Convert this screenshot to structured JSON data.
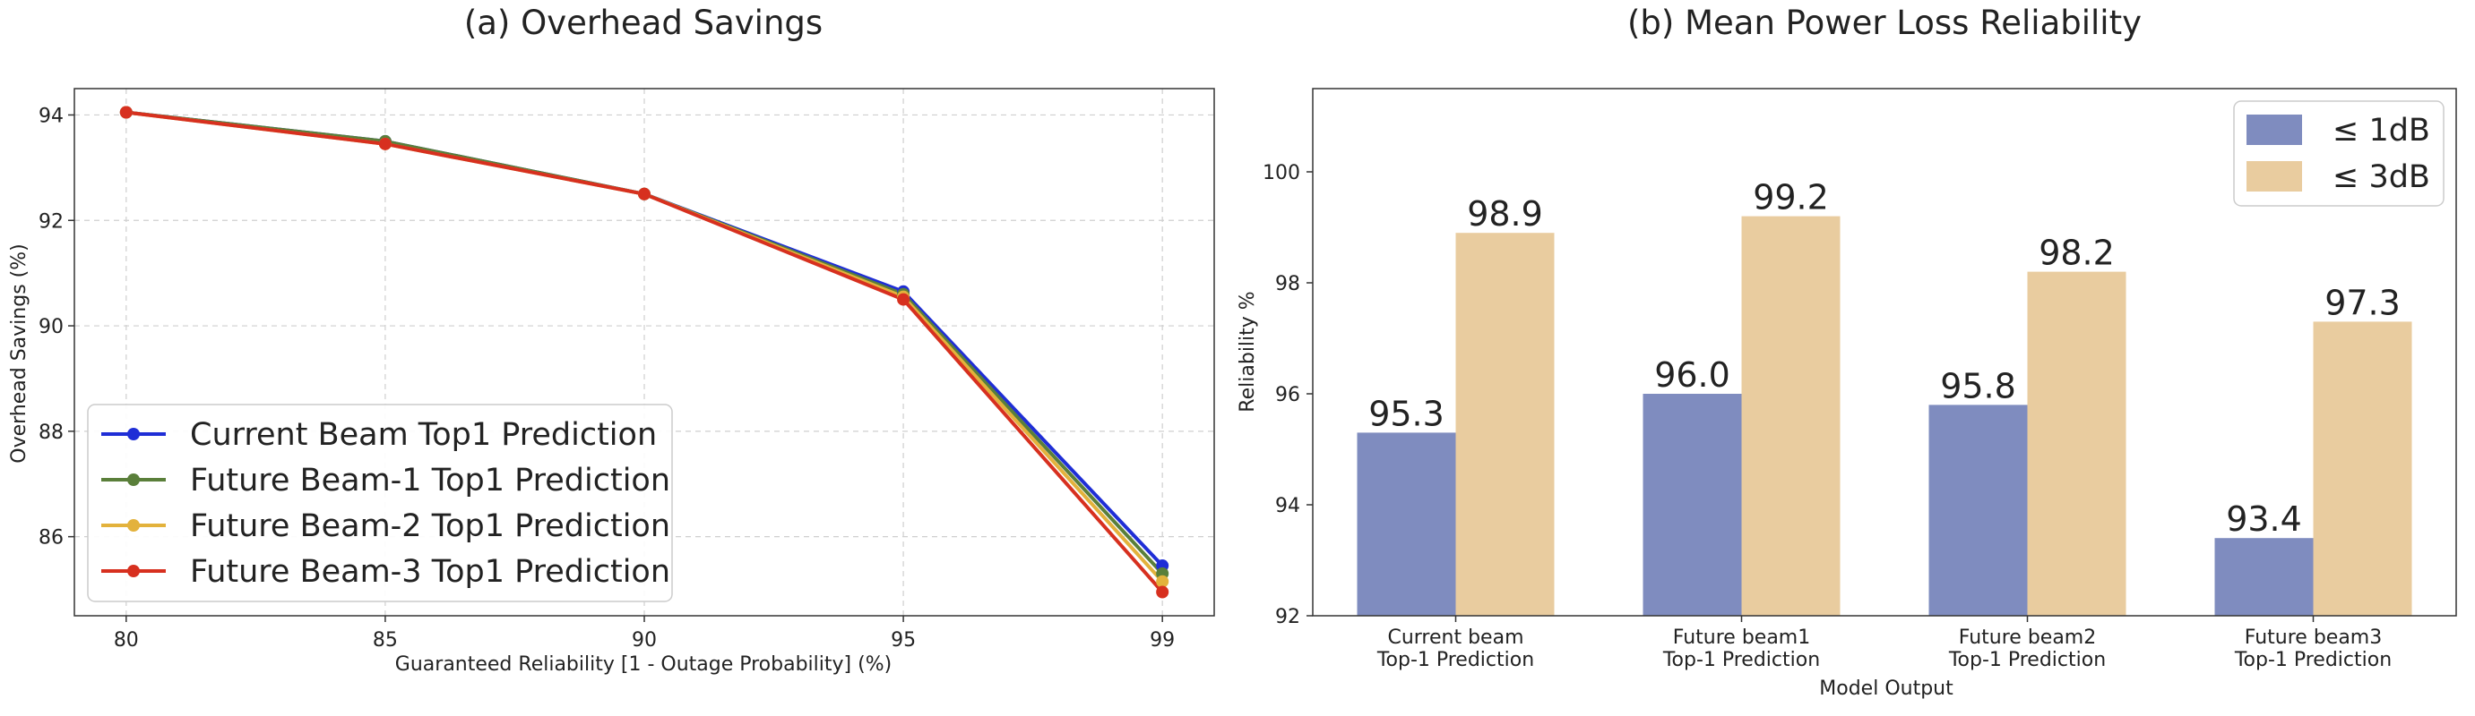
{
  "chart_data": [
    {
      "type": "line",
      "title": "(a) Overhead Savings",
      "xlabel": "Guaranteed Reliability [1 - Outage Probability] (%)",
      "ylabel": "Overhead Savings (%)",
      "x": [
        "80",
        "85",
        "90",
        "95",
        "99"
      ],
      "xlim": [
        -0.2,
        4.2
      ],
      "ylim": [
        84.5,
        94.5
      ],
      "yticks": [
        86,
        88,
        90,
        92,
        94
      ],
      "grid": true,
      "grid_style": "dashed",
      "legend": "lower-left",
      "series": [
        {
          "name": "Current Beam Top1 Prediction",
          "color": "#1f2ed6",
          "values": [
            94.05,
            93.5,
            92.5,
            90.65,
            85.45
          ]
        },
        {
          "name": "Future Beam-1 Top1 Prediction",
          "color": "#5a7f3a",
          "values": [
            94.05,
            93.5,
            92.5,
            90.6,
            85.3
          ]
        },
        {
          "name": "Future Beam-2 Top1 Prediction",
          "color": "#e3b23c",
          "values": [
            94.05,
            93.45,
            92.5,
            90.55,
            85.15
          ]
        },
        {
          "name": "Future Beam-3 Top1 Prediction",
          "color": "#d7301f",
          "values": [
            94.05,
            93.45,
            92.5,
            90.5,
            84.95
          ]
        }
      ]
    },
    {
      "type": "bar",
      "title": "(b) Mean Power Loss Reliability",
      "xlabel": "Model Output",
      "ylabel": "Reliability %",
      "categories": [
        [
          "Current beam",
          "Top-1 Prediction"
        ],
        [
          "Future beam1",
          "Top-1 Prediction"
        ],
        [
          "Future beam2",
          "Top-1 Prediction"
        ],
        [
          "Future beam3",
          "Top-1 Prediction"
        ]
      ],
      "ylim": [
        92,
        101.5
      ],
      "yticks": [
        92,
        94,
        96,
        98,
        100
      ],
      "grid": false,
      "legend": "top-right",
      "series": [
        {
          "name": "≤ 1dB",
          "color": "#7f8cbf",
          "values": [
            95.3,
            96.0,
            95.8,
            93.4
          ],
          "labels": [
            "95.3",
            "96.0",
            "95.8",
            "93.4"
          ]
        },
        {
          "name": "≤ 3dB",
          "color": "#e9cc9f",
          "values": [
            98.9,
            99.2,
            98.2,
            97.3
          ],
          "labels": [
            "98.9",
            "99.2",
            "98.2",
            "97.3"
          ]
        }
      ]
    }
  ]
}
